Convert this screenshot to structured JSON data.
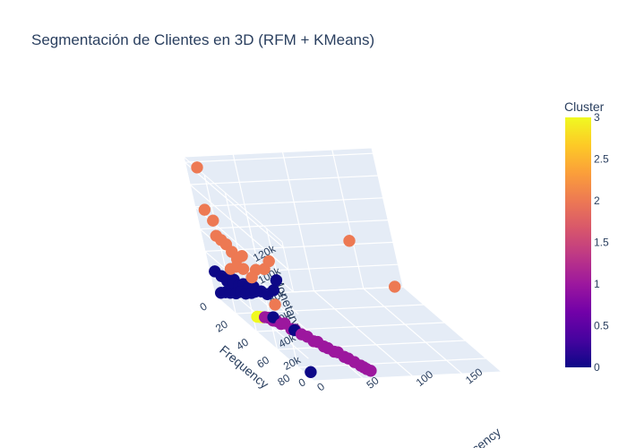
{
  "chart_data": {
    "type": "scatter",
    "mode": "3d",
    "title": "Segmentación de Clientes en 3D (RFM + KMeans)",
    "axes": {
      "x": {
        "label": "Recency",
        "ticks": [
          "0",
          "50",
          "100",
          "150"
        ],
        "tick_values": [
          0,
          50,
          100,
          150
        ],
        "range": [
          0,
          190
        ]
      },
      "y": {
        "label": "Frequency",
        "ticks": [
          "0",
          "20",
          "40",
          "60",
          "80"
        ],
        "tick_values": [
          0,
          20,
          40,
          60,
          80
        ],
        "range": [
          0,
          95
        ]
      },
      "z": {
        "label": "Monetary",
        "ticks": [
          "0",
          "20k",
          "40k",
          "60k",
          "80k",
          "100k",
          "120k"
        ],
        "tick_values": [
          0,
          20000,
          40000,
          60000,
          80000,
          100000,
          120000
        ],
        "range": [
          0,
          125000
        ]
      }
    },
    "colorbar": {
      "title": "Cluster",
      "ticks": [
        "0",
        "0.5",
        "1",
        "1.5",
        "2",
        "2.5",
        "3"
      ],
      "tick_values": [
        0,
        0.5,
        1,
        1.5,
        2,
        2.5,
        3
      ],
      "range": [
        0,
        3
      ],
      "colorscale": [
        "#0d0887",
        "#46039f",
        "#7201a8",
        "#9c179e",
        "#bd3786",
        "#d8576b",
        "#ed7953",
        "#fb9f3a",
        "#fdca26",
        "#f0f921"
      ]
    },
    "series": [
      {
        "cluster": 0,
        "color": "#0d0887",
        "points": [
          [
            0,
            8,
            9000
          ],
          [
            3,
            10,
            11000
          ],
          [
            6,
            12,
            12000
          ],
          [
            10,
            14,
            13000
          ],
          [
            14,
            15,
            15000
          ],
          [
            18,
            16,
            14000
          ],
          [
            22,
            18,
            16000
          ],
          [
            26,
            18,
            17000
          ],
          [
            8,
            9,
            20000
          ],
          [
            12,
            11,
            19000
          ],
          [
            16,
            12,
            18000
          ],
          [
            20,
            13,
            20000
          ],
          [
            24,
            14,
            18000
          ],
          [
            28,
            15,
            19000
          ],
          [
            5,
            7,
            23000
          ],
          [
            10,
            8,
            22000
          ],
          [
            15,
            9,
            21000
          ],
          [
            32,
            18,
            17000
          ],
          [
            36,
            20,
            16000
          ],
          [
            2,
            4,
            25000
          ],
          [
            48,
            20,
            28000
          ],
          [
            20,
            40,
            12000
          ],
          [
            30,
            50,
            8000
          ],
          [
            58,
            2,
            4000
          ],
          [
            5,
            88,
            2000
          ]
        ]
      },
      {
        "cluster": 1,
        "color": "#9c179e",
        "points": [
          [
            20,
            30,
            4000
          ],
          [
            24,
            34,
            4000
          ],
          [
            28,
            38,
            4000
          ],
          [
            32,
            44,
            4000
          ],
          [
            36,
            50,
            4000
          ],
          [
            40,
            58,
            4000
          ],
          [
            44,
            64,
            4000
          ],
          [
            48,
            70,
            4000
          ],
          [
            52,
            76,
            4000
          ],
          [
            56,
            82,
            4000
          ],
          [
            58,
            86,
            4000
          ],
          [
            60,
            90,
            4000
          ],
          [
            62,
            92,
            4000
          ],
          [
            22,
            32,
            5000
          ],
          [
            26,
            36,
            5000
          ],
          [
            30,
            40,
            6000
          ],
          [
            34,
            46,
            5000
          ],
          [
            38,
            54,
            5000
          ],
          [
            42,
            60,
            5000
          ],
          [
            46,
            66,
            4000
          ],
          [
            50,
            72,
            5000
          ],
          [
            54,
            78,
            4000
          ],
          [
            59,
            88,
            4000
          ]
        ]
      },
      {
        "cluster": 2,
        "color": "#ed7953",
        "points": [
          [
            6,
            6,
            120000
          ],
          [
            4,
            6,
            82000
          ],
          [
            10,
            6,
            72000
          ],
          [
            8,
            8,
            60000
          ],
          [
            12,
            8,
            56000
          ],
          [
            16,
            8,
            52000
          ],
          [
            20,
            8,
            45000
          ],
          [
            30,
            7,
            40000
          ],
          [
            22,
            10,
            40000
          ],
          [
            10,
            14,
            35000
          ],
          [
            18,
            12,
            35000
          ],
          [
            26,
            10,
            31000
          ],
          [
            40,
            8,
            28000
          ],
          [
            60,
            2,
            30000
          ],
          [
            52,
            4,
            25000
          ],
          [
            130,
            20,
            60000
          ],
          [
            16,
            30,
            40000
          ],
          [
            180,
            2,
            2000
          ],
          [
            8,
            60,
            40000
          ]
        ]
      },
      {
        "cluster": 3,
        "color": "#f0f921",
        "points": [
          [
            14,
            28,
            3000
          ],
          [
            16,
            29,
            3500
          ],
          [
            18,
            30,
            4000
          ]
        ]
      }
    ]
  }
}
